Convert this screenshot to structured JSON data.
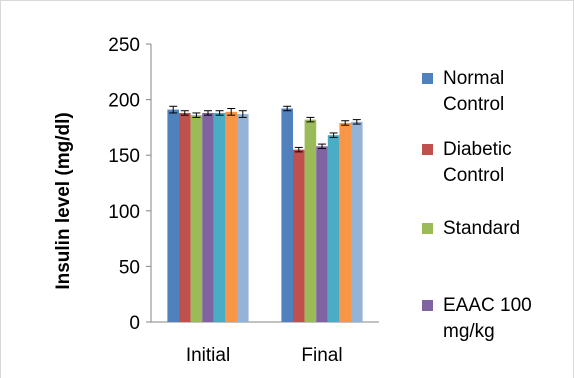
{
  "chart_data": {
    "type": "bar",
    "title": "",
    "xlabel": "",
    "ylabel": "Insulin level (mg/dl)",
    "ylim": [
      0,
      250
    ],
    "yticks": [
      0,
      50,
      100,
      150,
      200,
      250
    ],
    "grid": false,
    "legend_position": "right",
    "categories": [
      "Initial",
      "Final"
    ],
    "series": [
      {
        "name": "Normal\nControl",
        "color": "#4F81BD",
        "values": [
          191,
          192
        ],
        "errors": [
          3,
          2
        ]
      },
      {
        "name": "Diabetic\nControl",
        "color": "#C0504D",
        "values": [
          188,
          155
        ],
        "errors": [
          2,
          2
        ]
      },
      {
        "name": "Standard",
        "color": "#9BBB59",
        "values": [
          186,
          182
        ],
        "errors": [
          2,
          2
        ]
      },
      {
        "name": "EAAC 100\nmg/kg",
        "color": "#8064A2",
        "values": [
          188,
          158
        ],
        "errors": [
          2,
          2
        ]
      },
      {
        "values": [
          188,
          168
        ],
        "color": "#4BACC6",
        "errors": [
          2,
          2
        ]
      },
      {
        "values": [
          189,
          179
        ],
        "color": "#F79646",
        "errors": [
          3,
          2
        ]
      },
      {
        "values": [
          187,
          180
        ],
        "color": "#95B3D7",
        "errors": [
          3,
          2
        ]
      }
    ]
  }
}
